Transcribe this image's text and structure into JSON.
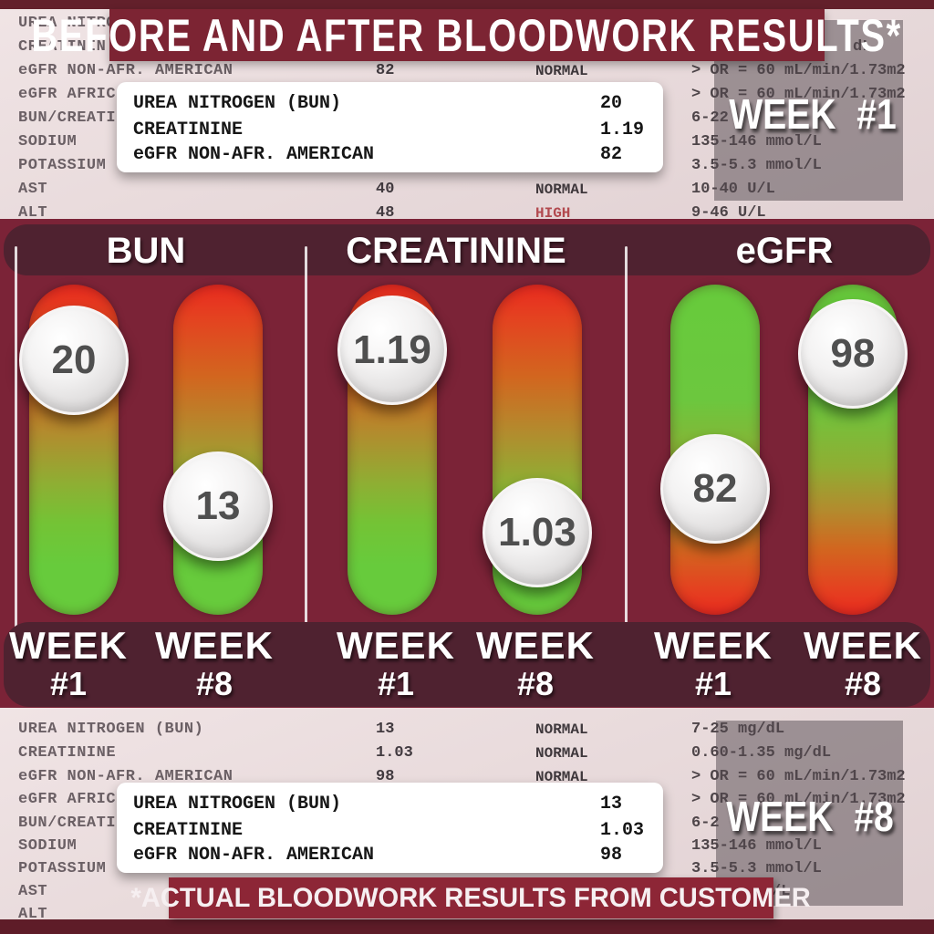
{
  "banner": {
    "title": "BEFORE AND AFTER BLOODWORK RESULTS*"
  },
  "footer": {
    "note": "*ACTUAL BLOODWORK RESULTS FROM CUSTOMER"
  },
  "colors": {
    "banner_bg": "#7c2433",
    "middle_bg": "#7b2337",
    "band_bg": "#4f2230",
    "slider_red": "#e92a1f",
    "slider_green": "#67cb3c",
    "report_bg": "#e9dbdc",
    "status_high": "#b2494f",
    "footer_bg": "#8d2636",
    "strip_bg": "#63202b"
  },
  "report_week1": {
    "week_tag": "WEEK #1",
    "rows": [
      {
        "name": "UREA NITRO",
        "value": "",
        "status": "",
        "range": ""
      },
      {
        "name": "CREATININ",
        "value": "",
        "status": "",
        "range": "dL"
      },
      {
        "name": "eGFR NON-AFR. AMERICAN",
        "value": "82",
        "status": "NORMAL",
        "range": "> OR = 60 mL/min/1.73m2"
      },
      {
        "name": "eGFR AFRIC",
        "value": "",
        "status": "",
        "range": "> OR = 60 mL/min/1.73m2"
      },
      {
        "name": "BUN/CREATI",
        "value": "",
        "status": "",
        "range": "6-22"
      },
      {
        "name": "SODIUM",
        "value": "",
        "status": "",
        "range": "135-146 mmol/L"
      },
      {
        "name": "POTASSIUM",
        "value": "",
        "status": "",
        "range": "3.5-5.3 mmol/L"
      },
      {
        "name": "AST",
        "value": "40",
        "status": "NORMAL",
        "range": "10-40 U/L"
      },
      {
        "name": "ALT",
        "value": "48",
        "status": "HIGH",
        "range": "9-46 U/L"
      }
    ],
    "callout": {
      "rows": [
        {
          "label": "UREA NITROGEN (BUN)",
          "value": "20"
        },
        {
          "label": "CREATININE",
          "value": "1.19"
        },
        {
          "label": "eGFR NON-AFR. AMERICAN",
          "value": "82"
        }
      ]
    }
  },
  "report_week8": {
    "week_tag": "WEEK #8",
    "rows": [
      {
        "name": "UREA NITROGEN (BUN)",
        "value": "13",
        "status": "NORMAL",
        "range": "7-25 mg/dL"
      },
      {
        "name": "CREATININE",
        "value": "1.03",
        "status": "NORMAL",
        "range": "0.60-1.35 mg/dL"
      },
      {
        "name": "eGFR NON-AFR. AMERICAN",
        "value": "98",
        "status": "NORMAL",
        "range": "> OR = 60 mL/min/1.73m2"
      },
      {
        "name": "eGFR AFRIC",
        "value": "",
        "status": "",
        "range": "> OR = 60 mL/min/1.73m2"
      },
      {
        "name": "BUN/CREATI",
        "value": "",
        "status": "",
        "range": "6-2"
      },
      {
        "name": "SODIUM",
        "value": "",
        "status": "",
        "range": "135-146 mmol/L"
      },
      {
        "name": "POTASSIUM",
        "value": "",
        "status": "",
        "range": "3.5-5.3 mmol/L"
      },
      {
        "name": "AST",
        "value": "",
        "status": "",
        "range": "/L"
      },
      {
        "name": "ALT",
        "value": "",
        "status": "",
        "range": ""
      }
    ],
    "callout": {
      "rows": [
        {
          "label": "UREA NITROGEN (BUN)",
          "value": "13"
        },
        {
          "label": "CREATININE",
          "value": "1.03"
        },
        {
          "label": "eGFR NON-AFR. AMERICAN",
          "value": "98"
        }
      ]
    }
  },
  "chart_data": {
    "type": "slider",
    "title": "BEFORE AND AFTER BLOODWORK RESULTS*",
    "legend_position": "none",
    "groups": [
      {
        "metric": "BUN",
        "scale_top": "high (red)",
        "scale_bottom": "low (green)",
        "sliders": [
          {
            "week_word": "WEEK",
            "week_num": "#1",
            "value": "20",
            "pos_pct": 23
          },
          {
            "week_word": "WEEK",
            "week_num": "#8",
            "value": "13",
            "pos_pct": 67
          }
        ]
      },
      {
        "metric": "CREATININE",
        "scale_top": "high (red)",
        "scale_bottom": "low (green)",
        "sliders": [
          {
            "week_word": "WEEK",
            "week_num": "#1",
            "value": "1.19",
            "pos_pct": 20
          },
          {
            "week_word": "WEEK",
            "week_num": "#8",
            "value": "1.03",
            "pos_pct": 75
          }
        ]
      },
      {
        "metric": "eGFR",
        "scale_top": "high (green)",
        "scale_bottom": "low (red)",
        "sliders": [
          {
            "week_word": "WEEK",
            "week_num": "#1",
            "value": "82",
            "pos_pct": 62
          },
          {
            "week_word": "WEEK",
            "week_num": "#8",
            "value": "98",
            "pos_pct": 21
          }
        ]
      }
    ]
  }
}
